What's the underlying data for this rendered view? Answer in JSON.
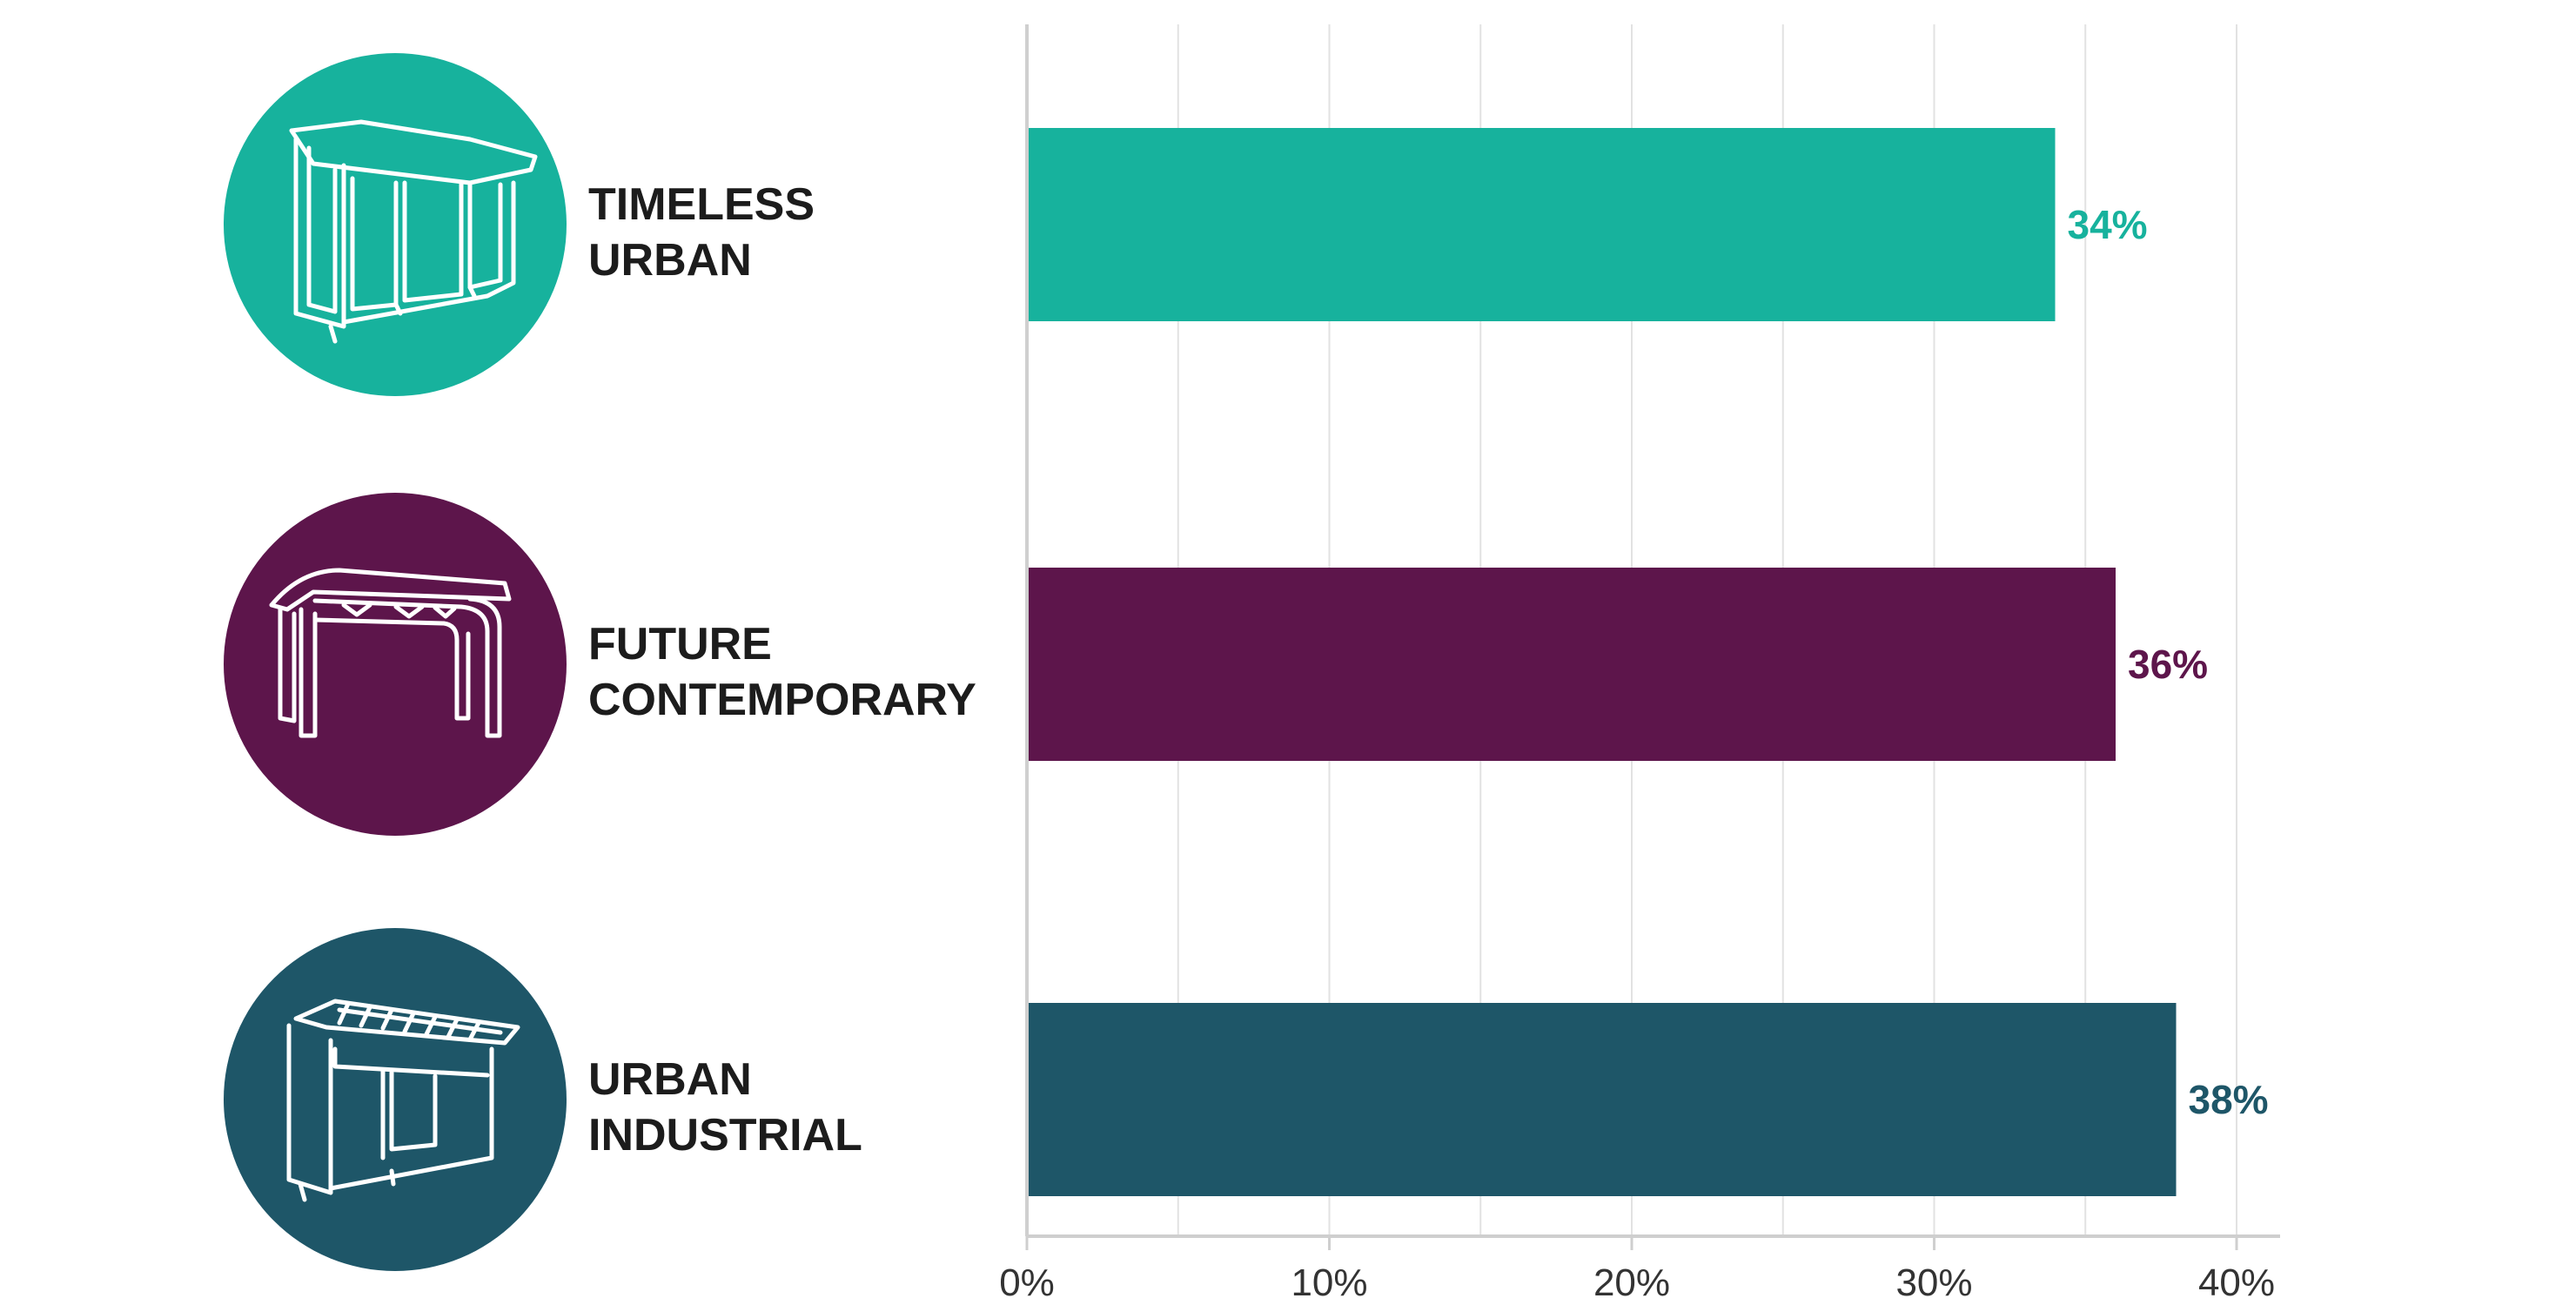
{
  "chart_data": {
    "type": "bar",
    "orientation": "horizontal",
    "categories": [
      {
        "line1": "TIMELESS",
        "line2": "URBAN",
        "icon": "bus-shelter-timeless-icon"
      },
      {
        "line1": "FUTURE",
        "line2": "CONTEMPORARY",
        "icon": "bus-shelter-future-icon"
      },
      {
        "line1": "URBAN",
        "line2": "INDUSTRIAL",
        "icon": "bus-shelter-industrial-icon"
      }
    ],
    "values": [
      34,
      36,
      38
    ],
    "value_labels": [
      "34%",
      "36%",
      "38%"
    ],
    "colors": [
      "#17b29d",
      "#5d154b",
      "#1e5668"
    ],
    "xlim": [
      0,
      40
    ],
    "x_ticks": [
      0,
      10,
      20,
      30,
      40
    ],
    "x_tick_labels": [
      "0%",
      "10%",
      "20%",
      "30%",
      "40%"
    ],
    "grid": true,
    "legend": "none",
    "title": "",
    "xlabel": "",
    "ylabel": ""
  }
}
